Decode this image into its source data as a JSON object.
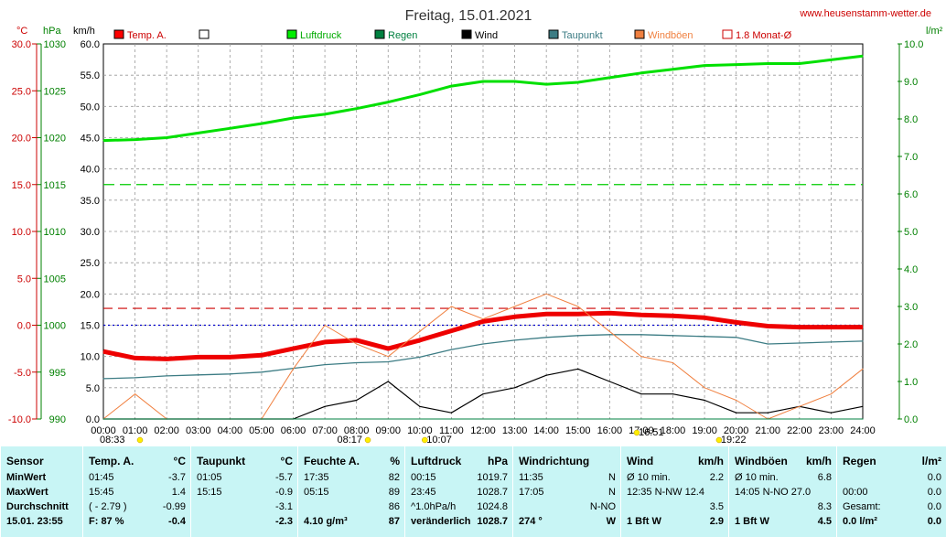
{
  "site": "www.heusenstamm-wetter.de",
  "title": "Freitag, 15.01.2021",
  "unit_labels": {
    "celsius": "°C",
    "hpa": "hPa",
    "kmh": "km/h",
    "lm2": "l/m²"
  },
  "legend": [
    {
      "label": "Temp. A.",
      "color": "#ff0000",
      "style": "box"
    },
    {
      "label": "",
      "color": "#ffffff",
      "style": "box"
    },
    {
      "label": "Luftdruck",
      "color": "#00ee00",
      "style": "box"
    },
    {
      "label": "Regen",
      "color": "#008040",
      "style": "box"
    },
    {
      "label": "Wind",
      "color": "#000000",
      "style": "box"
    },
    {
      "label": "Taupunkt",
      "color": "#3c7c84",
      "style": "box"
    },
    {
      "label": "Windböen",
      "color": "#f08040",
      "style": "box"
    },
    {
      "label": "1.8 Monat-Ø",
      "color": "#cc0000",
      "style": "outline"
    }
  ],
  "sun_marks": [
    {
      "label": "08:33",
      "hour": 0,
      "row": "bottom"
    },
    {
      "label": "08:17",
      "hour": 8.3,
      "row": "bottom"
    },
    {
      "label": "10:07",
      "hour": 10.1,
      "row": "bottom"
    },
    {
      "label": "16:51",
      "hour": 16.8,
      "row": "top"
    },
    {
      "label": "19:22",
      "hour": 19.4,
      "row": "bottom"
    }
  ],
  "chart_data": {
    "type": "line",
    "title": "Freitag, 15.01.2021",
    "x_ticks": [
      "00:00",
      "01:00",
      "02:00",
      "03:00",
      "04:00",
      "05:00",
      "06:00",
      "07:00",
      "08:00",
      "09:00",
      "10:00",
      "11:00",
      "12:00",
      "13:00",
      "14:00",
      "15:00",
      "16:00",
      "17:00",
      "18:00",
      "19:00",
      "20:00",
      "21:00",
      "22:00",
      "23:00",
      "24:00"
    ],
    "xlim": [
      0,
      24
    ],
    "axes": {
      "temp_c": {
        "ticks": [
          "30.0",
          "25.0",
          "20.0",
          "15.0",
          "10.0",
          "5.0",
          "0.0",
          "-5.0",
          "-10.0"
        ],
        "ylim": [
          -10,
          30
        ]
      },
      "pressure_hpa": {
        "ticks": [
          "1030",
          "1025",
          "1020",
          "1015",
          "1010",
          "1005",
          "1000",
          "995",
          "990"
        ],
        "ylim": [
          990,
          1030
        ]
      },
      "wind_kmh": {
        "ticks": [
          "60.0",
          "55.0",
          "50.0",
          "45.0",
          "40.0",
          "35.0",
          "30.0",
          "25.0",
          "20.0",
          "15.0",
          "10.0",
          "5.0",
          "0.0"
        ],
        "ylim": [
          0,
          60
        ]
      },
      "rain_lm2": {
        "ticks": [
          "10.0",
          "9.0",
          "8.0",
          "7.0",
          "6.0",
          "5.0",
          "4.0",
          "3.0",
          "2.0",
          "1.0",
          "0.0"
        ],
        "ylim": [
          0,
          10
        ]
      }
    },
    "grid": true,
    "reference_lines": [
      {
        "name": "1.8 Monat-Ø",
        "axis": "temp_c",
        "value": 1.8
      },
      {
        "axis": "temp_c",
        "value": 0
      },
      {
        "axis": "pressure_hpa",
        "value": 1015
      }
    ],
    "series": [
      {
        "name": "Temp. A.",
        "axis": "temp_c",
        "x": [
          0,
          1,
          2,
          3,
          4,
          5,
          6,
          7,
          8,
          9,
          10,
          11,
          12,
          13,
          14,
          15,
          16,
          17,
          18,
          19,
          20,
          21,
          22,
          23,
          24
        ],
        "y": [
          -2.8,
          -3.5,
          -3.6,
          -3.4,
          -3.4,
          -3.2,
          -2.5,
          -1.8,
          -1.6,
          -2.5,
          -1.6,
          -0.6,
          0.4,
          0.9,
          1.2,
          1.2,
          1.3,
          1.1,
          1.0,
          0.8,
          0.3,
          -0.1,
          -0.2,
          -0.2,
          -0.2
        ]
      },
      {
        "name": "Taupunkt",
        "axis": "temp_c",
        "x": [
          0,
          1,
          2,
          3,
          4,
          5,
          6,
          7,
          8,
          9,
          10,
          11,
          12,
          13,
          14,
          15,
          16,
          17,
          18,
          19,
          20,
          21,
          22,
          23,
          24
        ],
        "y": [
          -5.7,
          -5.6,
          -5.4,
          -5.3,
          -5.2,
          -5.0,
          -4.6,
          -4.2,
          -4.0,
          -3.9,
          -3.4,
          -2.6,
          -2.0,
          -1.6,
          -1.3,
          -1.1,
          -1.0,
          -1.0,
          -1.1,
          -1.2,
          -1.3,
          -2.0,
          -1.9,
          -1.8,
          -1.7
        ]
      },
      {
        "name": "Luftdruck",
        "axis": "pressure_hpa",
        "x": [
          0,
          1,
          2,
          3,
          4,
          5,
          6,
          7,
          8,
          9,
          10,
          11,
          12,
          13,
          14,
          15,
          16,
          17,
          18,
          19,
          20,
          21,
          22,
          23,
          24
        ],
        "y": [
          1019.7,
          1019.8,
          1020.0,
          1020.5,
          1021.0,
          1021.5,
          1022.1,
          1022.5,
          1023.1,
          1023.8,
          1024.6,
          1025.5,
          1026.0,
          1026.0,
          1025.7,
          1025.9,
          1026.4,
          1026.9,
          1027.3,
          1027.7,
          1027.8,
          1027.9,
          1027.9,
          1028.3,
          1028.7
        ]
      },
      {
        "name": "Wind",
        "axis": "wind_kmh",
        "x": [
          0,
          1,
          2,
          3,
          4,
          5,
          6,
          7,
          8,
          9,
          10,
          11,
          12,
          13,
          14,
          15,
          16,
          17,
          18,
          19,
          20,
          21,
          22,
          23,
          24
        ],
        "y": [
          0,
          0,
          0,
          0,
          0,
          0,
          0,
          2,
          3,
          6,
          2,
          1,
          4,
          5,
          7,
          8,
          6,
          4,
          4,
          3,
          1,
          1,
          2,
          1,
          2
        ]
      },
      {
        "name": "Windböen",
        "axis": "wind_kmh",
        "x": [
          0,
          1,
          2,
          3,
          4,
          5,
          6,
          7,
          8,
          9,
          10,
          11,
          12,
          13,
          14,
          15,
          16,
          17,
          18,
          19,
          20,
          21,
          22,
          23,
          24
        ],
        "y": [
          0,
          4,
          0,
          0,
          0,
          0,
          8,
          15,
          12,
          10,
          14,
          18,
          16,
          18,
          20,
          18,
          14,
          10,
          9,
          5,
          3,
          0,
          2,
          4,
          8
        ]
      },
      {
        "name": "Regen",
        "axis": "rain_lm2",
        "x": [
          0,
          24
        ],
        "y": [
          0,
          0
        ]
      }
    ]
  },
  "stats": {
    "columns": [
      {
        "title": "Sensor",
        "unit": "",
        "rows": [
          [
            "MinWert",
            ""
          ],
          [
            "MaxWert",
            ""
          ],
          [
            "Durchschnitt",
            ""
          ],
          [
            "15.01. 23:55",
            ""
          ]
        ],
        "bold_last": true
      },
      {
        "title": "Temp. A.",
        "unit": "°C",
        "rows": [
          [
            "01:45",
            "-3.7"
          ],
          [
            "15:45",
            "1.4"
          ],
          [
            "( - 2.79 )",
            "-0.99"
          ],
          [
            "F: 87 %",
            "-0.4"
          ]
        ]
      },
      {
        "title": "Taupunkt",
        "unit": "°C",
        "rows": [
          [
            "01:05",
            "-5.7"
          ],
          [
            "15:15",
            "-0.9"
          ],
          [
            "",
            "-3.1"
          ],
          [
            "",
            "-2.3"
          ]
        ]
      },
      {
        "title": "Feuchte A.",
        "unit": "%",
        "rows": [
          [
            "17:35",
            "82"
          ],
          [
            "05:15",
            "89"
          ],
          [
            "",
            "86"
          ],
          [
            "4.10 g/m³",
            "87"
          ]
        ]
      },
      {
        "title": "Luftdruck",
        "unit": "hPa",
        "rows": [
          [
            "00:15",
            "1019.7"
          ],
          [
            "23:45",
            "1028.7"
          ],
          [
            "^1.0hPa/h",
            "1024.8"
          ],
          [
            "veränderlich",
            "1028.7"
          ]
        ]
      },
      {
        "title": "Windrichtung",
        "unit": "",
        "rows": [
          [
            "11:35",
            "N"
          ],
          [
            "17:05",
            "N"
          ],
          [
            "",
            "N-NO"
          ],
          [
            "274 °",
            "W"
          ]
        ]
      },
      {
        "title": "Wind",
        "unit": "km/h",
        "rows": [
          [
            "Ø 10 min.",
            "2.2"
          ],
          [
            "12:35   N-NW 12.4",
            ""
          ],
          [
            "",
            "3.5"
          ],
          [
            "1 Bft W",
            "2.9"
          ]
        ]
      },
      {
        "title": "Windböen",
        "unit": "km/h",
        "rows": [
          [
            "Ø 10 min.",
            "6.8"
          ],
          [
            "14:05    N-NO 27.0",
            ""
          ],
          [
            "",
            "8.3"
          ],
          [
            "1 Bft W",
            "4.5"
          ]
        ]
      },
      {
        "title": "Regen",
        "unit": "l/m²",
        "rows": [
          [
            "",
            "0.0"
          ],
          [
            "00:00",
            "0.0"
          ],
          [
            "Gesamt:",
            "0.0"
          ],
          [
            "0.0 l/m²",
            "0.0"
          ]
        ]
      }
    ]
  }
}
